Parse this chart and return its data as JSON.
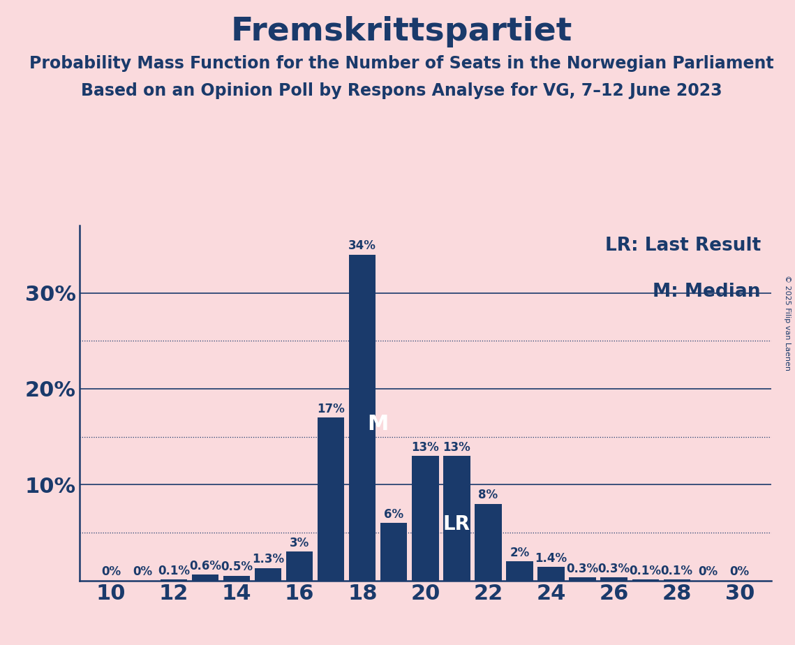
{
  "title": "Fremskrittspartiet",
  "subtitle1": "Probability Mass Function for the Number of Seats in the Norwegian Parliament",
  "subtitle2": "Based on an Opinion Poll by Respons Analyse for VG, 7–12 June 2023",
  "copyright": "© 2025 Filip van Laenen",
  "seats": [
    10,
    11,
    12,
    13,
    14,
    15,
    16,
    17,
    18,
    19,
    20,
    21,
    22,
    23,
    24,
    25,
    26,
    27,
    28,
    29,
    30
  ],
  "probabilities": [
    0.0,
    0.0,
    0.1,
    0.6,
    0.5,
    1.3,
    3.0,
    17.0,
    34.0,
    6.0,
    13.0,
    13.0,
    8.0,
    2.0,
    1.4,
    0.3,
    0.3,
    0.1,
    0.1,
    0.0,
    0.0
  ],
  "labels": [
    "0%",
    "0%",
    "0.1%",
    "0.6%",
    "0.5%",
    "1.3%",
    "3%",
    "17%",
    "34%",
    "6%",
    "13%",
    "13%",
    "8%",
    "2%",
    "1.4%",
    "0.3%",
    "0.3%",
    "0.1%",
    "0.1%",
    "0%",
    "0%"
  ],
  "median_seat": 18,
  "lr_seat": 21,
  "bar_color": "#1a3a6b",
  "background_color": "#fadadd",
  "text_color": "#1a3a6b",
  "label_color_above": "#1a3a6b",
  "label_color_inside": "#ffffff",
  "title_fontsize": 34,
  "subtitle_fontsize": 17,
  "axis_tick_fontsize": 22,
  "bar_label_fontsize": 12,
  "legend_fontsize": 19,
  "marker_fontsize": 22,
  "ymax": 37,
  "xmin": 9,
  "xmax": 31,
  "dotted_grid_lines": [
    5,
    15,
    25
  ],
  "solid_grid_lines": [
    10,
    20,
    30
  ]
}
